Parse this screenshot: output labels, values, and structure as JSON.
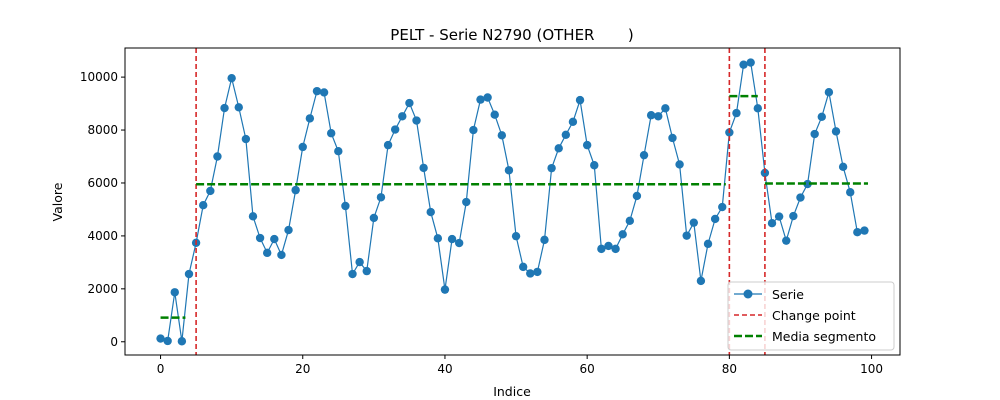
{
  "chart_data": {
    "type": "line",
    "title": "PELT - Serie N2790 (OTHER       )",
    "xlabel": "Indice",
    "ylabel": "Valore",
    "xlim": [
      -5,
      104
    ],
    "ylim": [
      -500,
      11100
    ],
    "xticks": [
      0,
      20,
      40,
      60,
      80,
      100
    ],
    "yticks": [
      0,
      2000,
      4000,
      6000,
      8000,
      10000
    ],
    "grid": false,
    "legend_position": "lower-right",
    "legend": {
      "serie": "Serie",
      "change_point": "Change point",
      "media": "Media segmento"
    },
    "colors": {
      "serie": "#1f77b4",
      "change_point": "#d62728",
      "media": "#008000"
    },
    "series": [
      {
        "name": "Serie",
        "x": [
          0,
          1,
          2,
          3,
          4,
          5,
          6,
          7,
          8,
          9,
          10,
          11,
          12,
          13,
          14,
          15,
          16,
          17,
          18,
          19,
          20,
          21,
          22,
          23,
          24,
          25,
          26,
          27,
          28,
          29,
          30,
          31,
          32,
          33,
          34,
          35,
          36,
          37,
          38,
          39,
          40,
          41,
          42,
          43,
          44,
          45,
          46,
          47,
          48,
          49,
          50,
          51,
          52,
          53,
          54,
          55,
          56,
          57,
          58,
          59,
          60,
          61,
          62,
          63,
          64,
          65,
          66,
          67,
          68,
          69,
          70,
          71,
          72,
          73,
          74,
          75,
          76,
          77,
          78,
          79,
          80,
          81,
          82,
          83,
          84,
          85,
          86,
          87,
          88,
          89,
          90,
          91,
          92,
          93,
          94,
          95,
          96,
          97,
          98,
          99
        ],
        "values": [
          120,
          30,
          1870,
          20,
          2560,
          3740,
          5160,
          5700,
          7000,
          8830,
          9960,
          8860,
          7660,
          4740,
          3920,
          3360,
          3880,
          3280,
          4220,
          5730,
          7360,
          8440,
          9470,
          9420,
          7880,
          7200,
          5130,
          2560,
          3010,
          2670,
          4680,
          5460,
          7430,
          8020,
          8520,
          9020,
          8360,
          6570,
          4900,
          3910,
          1970,
          3880,
          3730,
          5280,
          8000,
          9150,
          9230,
          8580,
          7800,
          6480,
          3990,
          2830,
          2580,
          2640,
          3850,
          6560,
          7310,
          7820,
          8310,
          9130,
          7430,
          6670,
          3510,
          3620,
          3510,
          4060,
          4570,
          5510,
          7050,
          8560,
          8520,
          8820,
          7700,
          6700,
          4010,
          4500,
          2300,
          3700,
          4640,
          5090,
          7910,
          8640,
          10470,
          10550,
          8820,
          6380,
          4480,
          4730,
          3820,
          4750,
          5450,
          5960,
          7850,
          8500,
          9430,
          7950,
          6610,
          5650,
          4140,
          4200
        ]
      }
    ],
    "change_points": [
      5,
      80,
      85
    ],
    "segment_means": [
      {
        "x_start": 0,
        "x_end": 3.5,
        "value": 910
      },
      {
        "x_start": 5,
        "x_end": 79.5,
        "value": 5950
      },
      {
        "x_start": 80,
        "x_end": 84,
        "value": 9280
      },
      {
        "x_start": 85,
        "x_end": 99.5,
        "value": 5980
      }
    ]
  }
}
